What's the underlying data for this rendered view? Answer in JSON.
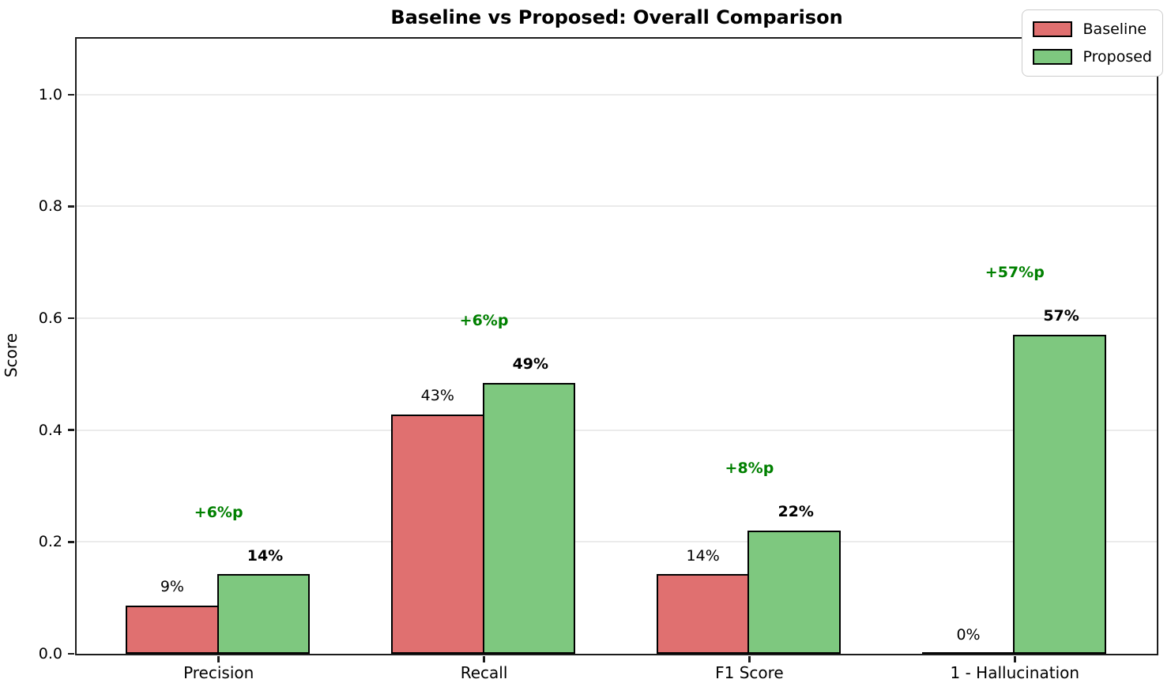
{
  "chart_data": {
    "type": "bar",
    "title": "Baseline vs Proposed: Overall Comparison",
    "ylabel": "Score",
    "xlabel": "",
    "categories": [
      "Precision",
      "Recall",
      "F1 Score",
      "1 - Hallucination"
    ],
    "series": [
      {
        "name": "Baseline",
        "color": "#e07070",
        "values": [
          0.086,
          0.428,
          0.142,
          0.0
        ],
        "bar_labels": [
          "9%",
          "43%",
          "14%",
          "0%"
        ]
      },
      {
        "name": "Proposed",
        "color": "#7ec87f",
        "values": [
          0.142,
          0.485,
          0.221,
          0.571
        ],
        "bar_labels": [
          "14%",
          "49%",
          "22%",
          "57%"
        ]
      }
    ],
    "delta_labels": [
      "+6%p",
      "+6%p",
      "+8%p",
      "+57%p"
    ],
    "delta_color": "#008000",
    "bar_edge_color": "#000000",
    "ylim": [
      0,
      1.1
    ],
    "yticks": [
      0.0,
      0.2,
      0.4,
      0.6,
      0.8,
      1.0
    ],
    "xlim": [
      -0.535,
      3.535
    ],
    "bar_width": 0.35,
    "grid": true,
    "legend": {
      "position": "upper right",
      "entries": [
        "Baseline",
        "Proposed"
      ]
    }
  }
}
